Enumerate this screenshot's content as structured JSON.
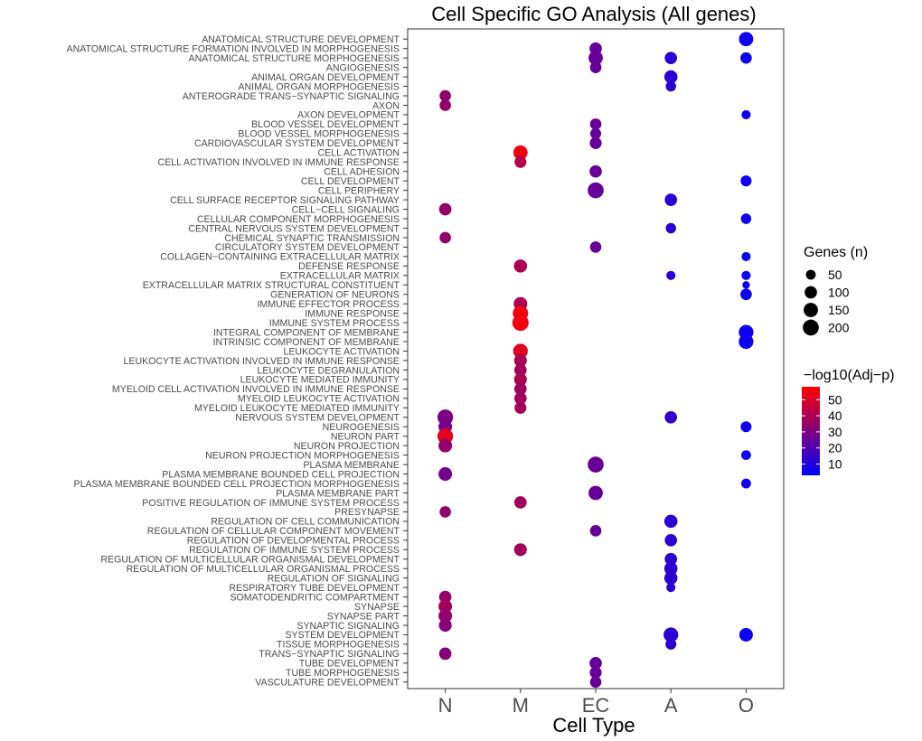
{
  "chart_data": {
    "type": "scatter",
    "title": "Cell Specific GO Analysis (All genes)",
    "xlabel": "Cell Type",
    "ylabel": "",
    "x_categories": [
      "N",
      "M",
      "EC",
      "A",
      "O"
    ],
    "y_categories": [
      "ANATOMICAL STRUCTURE DEVELOPMENT",
      "ANATOMICAL STRUCTURE FORMATION INVOLVED IN MORPHOGENESIS",
      "ANATOMICAL STRUCTURE MORPHOGENESIS",
      "ANGIOGENESIS",
      "ANIMAL ORGAN DEVELOPMENT",
      "ANIMAL ORGAN MORPHOGENESIS",
      "ANTEROGRADE TRANS−SYNAPTIC SIGNALING",
      "AXON",
      "AXON DEVELOPMENT",
      "BLOOD VESSEL DEVELOPMENT",
      "BLOOD VESSEL MORPHOGENESIS",
      "CARDIOVASCULAR SYSTEM DEVELOPMENT",
      "CELL ACTIVATION",
      "CELL ACTIVATION INVOLVED IN IMMUNE RESPONSE",
      "CELL ADHESION",
      "CELL DEVELOPMENT",
      "CELL PERIPHERY",
      "CELL SURFACE RECEPTOR SIGNALING PATHWAY",
      "CELL−CELL SIGNALING",
      "CELLULAR COMPONENT MORPHOGENESIS",
      "CENTRAL NERVOUS SYSTEM DEVELOPMENT",
      "CHEMICAL SYNAPTIC TRANSMISSION",
      "CIRCULATORY SYSTEM DEVELOPMENT",
      "COLLAGEN−CONTAINING EXTRACELLULAR MATRIX",
      "DEFENSE RESPONSE",
      "EXTRACELLULAR MATRIX",
      "EXTRACELLULAR MATRIX STRUCTURAL CONSTITUENT",
      "GENERATION OF NEURONS",
      "IMMUNE EFFECTOR PROCESS",
      "IMMUNE RESPONSE",
      "IMMUNE SYSTEM PROCESS",
      "INTEGRAL COMPONENT OF MEMBRANE",
      "INTRINSIC COMPONENT OF MEMBRANE",
      "LEUKOCYTE ACTIVATION",
      "LEUKOCYTE ACTIVATION INVOLVED IN IMMUNE RESPONSE",
      "LEUKOCYTE DEGRANULATION",
      "LEUKOCYTE MEDIATED IMMUNITY",
      "MYELOID CELL ACTIVATION INVOLVED IN IMMUNE RESPONSE",
      "MYELOID LEUKOCYTE ACTIVATION",
      "MYELOID LEUKOCYTE MEDIATED IMMUNITY",
      "NERVOUS SYSTEM DEVELOPMENT",
      "NEUROGENESIS",
      "NEURON PART",
      "NEURON PROJECTION",
      "NEURON PROJECTION MORPHOGENESIS",
      "PLASMA MEMBRANE",
      "PLASMA MEMBRANE BOUNDED CELL PROJECTION",
      "PLASMA MEMBRANE BOUNDED CELL PROJECTION MORPHOGENESIS",
      "PLASMA MEMBRANE PART",
      "POSITIVE REGULATION OF IMMUNE SYSTEM PROCESS",
      "PRESYNAPSE",
      "REGULATION OF CELL COMMUNICATION",
      "REGULATION OF CELLULAR COMPONENT MOVEMENT",
      "REGULATION OF DEVELOPMENTAL PROCESS",
      "REGULATION OF IMMUNE SYSTEM PROCESS",
      "REGULATION OF MULTICELLULAR ORGANISMAL DEVELOPMENT",
      "REGULATION OF MULTICELLULAR ORGANISMAL PROCESS",
      "REGULATION OF SIGNALING",
      "RESPIRATORY TUBE DEVELOPMENT",
      "SOMATODENDRITIC COMPARTMENT",
      "SYNAPSE",
      "SYNAPSE PART",
      "SYNAPTIC SIGNALING",
      "SYSTEM DEVELOPMENT",
      "TISSUE MORPHOGENESIS",
      "TRANS−SYNAPTIC SIGNALING",
      "TUBE DEVELOPMENT",
      "TUBE MORPHOGENESIS",
      "VASCULATURE DEVELOPMENT"
    ],
    "points": [
      {
        "term": 0,
        "cell": "O",
        "genes": 150,
        "neglog10p": 6
      },
      {
        "term": 1,
        "cell": "EC",
        "genes": 100,
        "neglog10p": 25
      },
      {
        "term": 2,
        "cell": "EC",
        "genes": 150,
        "neglog10p": 25
      },
      {
        "term": 2,
        "cell": "A",
        "genes": 100,
        "neglog10p": 12
      },
      {
        "term": 2,
        "cell": "O",
        "genes": 80,
        "neglog10p": 6
      },
      {
        "term": 3,
        "cell": "EC",
        "genes": 80,
        "neglog10p": 25
      },
      {
        "term": 4,
        "cell": "A",
        "genes": 120,
        "neglog10p": 12
      },
      {
        "term": 5,
        "cell": "A",
        "genes": 60,
        "neglog10p": 12
      },
      {
        "term": 6,
        "cell": "N",
        "genes": 80,
        "neglog10p": 35
      },
      {
        "term": 7,
        "cell": "N",
        "genes": 80,
        "neglog10p": 35
      },
      {
        "term": 8,
        "cell": "O",
        "genes": 40,
        "neglog10p": 6
      },
      {
        "term": 9,
        "cell": "EC",
        "genes": 80,
        "neglog10p": 25
      },
      {
        "term": 10,
        "cell": "EC",
        "genes": 70,
        "neglog10p": 25
      },
      {
        "term": 11,
        "cell": "EC",
        "genes": 90,
        "neglog10p": 25
      },
      {
        "term": 12,
        "cell": "M",
        "genes": 150,
        "neglog10p": 55
      },
      {
        "term": 13,
        "cell": "M",
        "genes": 90,
        "neglog10p": 42
      },
      {
        "term": 14,
        "cell": "EC",
        "genes": 100,
        "neglog10p": 25
      },
      {
        "term": 15,
        "cell": "O",
        "genes": 70,
        "neglog10p": 6
      },
      {
        "term": 16,
        "cell": "EC",
        "genes": 200,
        "neglog10p": 25
      },
      {
        "term": 17,
        "cell": "A",
        "genes": 100,
        "neglog10p": 12
      },
      {
        "term": 18,
        "cell": "N",
        "genes": 100,
        "neglog10p": 35
      },
      {
        "term": 19,
        "cell": "O",
        "genes": 60,
        "neglog10p": 6
      },
      {
        "term": 20,
        "cell": "A",
        "genes": 60,
        "neglog10p": 12
      },
      {
        "term": 21,
        "cell": "N",
        "genes": 80,
        "neglog10p": 35
      },
      {
        "term": 22,
        "cell": "EC",
        "genes": 80,
        "neglog10p": 25
      },
      {
        "term": 23,
        "cell": "O",
        "genes": 40,
        "neglog10p": 6
      },
      {
        "term": 24,
        "cell": "M",
        "genes": 120,
        "neglog10p": 40
      },
      {
        "term": 25,
        "cell": "A",
        "genes": 40,
        "neglog10p": 12
      },
      {
        "term": 25,
        "cell": "O",
        "genes": 40,
        "neglog10p": 6
      },
      {
        "term": 26,
        "cell": "O",
        "genes": 20,
        "neglog10p": 6
      },
      {
        "term": 27,
        "cell": "O",
        "genes": 80,
        "neglog10p": 6
      },
      {
        "term": 28,
        "cell": "M",
        "genes": 130,
        "neglog10p": 40
      },
      {
        "term": 29,
        "cell": "M",
        "genes": 180,
        "neglog10p": 55
      },
      {
        "term": 30,
        "cell": "M",
        "genes": 210,
        "neglog10p": 55
      },
      {
        "term": 31,
        "cell": "O",
        "genes": 160,
        "neglog10p": 6
      },
      {
        "term": 32,
        "cell": "O",
        "genes": 160,
        "neglog10p": 6
      },
      {
        "term": 33,
        "cell": "M",
        "genes": 160,
        "neglog10p": 52
      },
      {
        "term": 34,
        "cell": "M",
        "genes": 110,
        "neglog10p": 40
      },
      {
        "term": 35,
        "cell": "M",
        "genes": 100,
        "neglog10p": 38
      },
      {
        "term": 36,
        "cell": "M",
        "genes": 110,
        "neglog10p": 40
      },
      {
        "term": 37,
        "cell": "M",
        "genes": 100,
        "neglog10p": 38
      },
      {
        "term": 38,
        "cell": "M",
        "genes": 100,
        "neglog10p": 38
      },
      {
        "term": 39,
        "cell": "M",
        "genes": 90,
        "neglog10p": 38
      },
      {
        "term": 40,
        "cell": "N",
        "genes": 190,
        "neglog10p": 30
      },
      {
        "term": 40,
        "cell": "A",
        "genes": 100,
        "neglog10p": 14
      },
      {
        "term": 41,
        "cell": "N",
        "genes": 130,
        "neglog10p": 28
      },
      {
        "term": 41,
        "cell": "O",
        "genes": 70,
        "neglog10p": 6
      },
      {
        "term": 42,
        "cell": "N",
        "genes": 190,
        "neglog10p": 52
      },
      {
        "term": 43,
        "cell": "N",
        "genes": 130,
        "neglog10p": 35
      },
      {
        "term": 44,
        "cell": "O",
        "genes": 50,
        "neglog10p": 6
      },
      {
        "term": 45,
        "cell": "EC",
        "genes": 200,
        "neglog10p": 25
      },
      {
        "term": 46,
        "cell": "N",
        "genes": 130,
        "neglog10p": 28
      },
      {
        "term": 47,
        "cell": "O",
        "genes": 50,
        "neglog10p": 6
      },
      {
        "term": 48,
        "cell": "EC",
        "genes": 150,
        "neglog10p": 25
      },
      {
        "term": 49,
        "cell": "M",
        "genes": 100,
        "neglog10p": 38
      },
      {
        "term": 50,
        "cell": "N",
        "genes": 80,
        "neglog10p": 35
      },
      {
        "term": 51,
        "cell": "A",
        "genes": 120,
        "neglog10p": 12
      },
      {
        "term": 52,
        "cell": "EC",
        "genes": 80,
        "neglog10p": 25
      },
      {
        "term": 53,
        "cell": "A",
        "genes": 100,
        "neglog10p": 12
      },
      {
        "term": 54,
        "cell": "M",
        "genes": 110,
        "neglog10p": 38
      },
      {
        "term": 55,
        "cell": "A",
        "genes": 100,
        "neglog10p": 12
      },
      {
        "term": 56,
        "cell": "A",
        "genes": 120,
        "neglog10p": 12
      },
      {
        "term": 57,
        "cell": "A",
        "genes": 120,
        "neglog10p": 12
      },
      {
        "term": 58,
        "cell": "A",
        "genes": 40,
        "neglog10p": 12
      },
      {
        "term": 59,
        "cell": "N",
        "genes": 100,
        "neglog10p": 35
      },
      {
        "term": 60,
        "cell": "N",
        "genes": 130,
        "neglog10p": 38
      },
      {
        "term": 61,
        "cell": "N",
        "genes": 130,
        "neglog10p": 35
      },
      {
        "term": 62,
        "cell": "N",
        "genes": 110,
        "neglog10p": 32
      },
      {
        "term": 63,
        "cell": "A",
        "genes": 160,
        "neglog10p": 12
      },
      {
        "term": 63,
        "cell": "O",
        "genes": 130,
        "neglog10p": 6
      },
      {
        "term": 64,
        "cell": "A",
        "genes": 70,
        "neglog10p": 12
      },
      {
        "term": 65,
        "cell": "N",
        "genes": 100,
        "neglog10p": 32
      },
      {
        "term": 66,
        "cell": "EC",
        "genes": 100,
        "neglog10p": 25
      },
      {
        "term": 67,
        "cell": "EC",
        "genes": 90,
        "neglog10p": 25
      },
      {
        "term": 68,
        "cell": "EC",
        "genes": 80,
        "neglog10p": 25
      }
    ],
    "size_legend": {
      "title": "Genes (n)",
      "breaks": [
        50,
        100,
        150,
        200
      ]
    },
    "color_legend": {
      "title": "−log10(Adj−p)",
      "breaks": [
        10,
        20,
        30,
        40,
        50
      ],
      "range": [
        3,
        58
      ],
      "low_color": "#0000ff",
      "high_color": "#ff0000"
    }
  }
}
